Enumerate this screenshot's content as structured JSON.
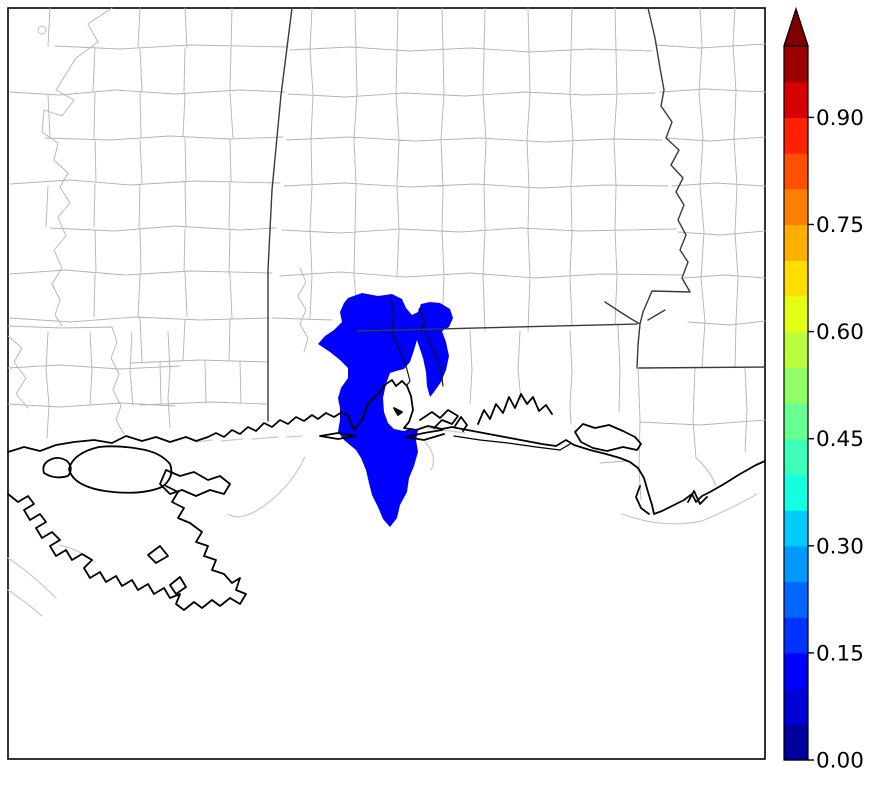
{
  "figure": {
    "background_color": "#ffffff"
  },
  "map": {
    "frame_color": "#000000",
    "land_color": "#ffffff",
    "county_line_color": "#b3b3b3",
    "state_line_color": "#3a3a3a",
    "coastline_color": "#000000",
    "water_feature_color": "#c9c9c9",
    "overlay_region": {
      "fill_color": "#0000FF",
      "border_color": "#111111",
      "colorbar_bin": [
        0.1,
        0.15
      ]
    }
  },
  "colorbar": {
    "orientation": "vertical",
    "extend": "max",
    "range": [
      0.0,
      1.0
    ],
    "bin_size": 0.05,
    "arrow_color": "#800000",
    "outline_color": "#000000",
    "label_color": "#000000",
    "ticks": [
      {
        "label": "0.90",
        "value": 0.9
      },
      {
        "label": "0.75",
        "value": 0.75
      },
      {
        "label": "0.60",
        "value": 0.6
      },
      {
        "label": "0.45",
        "value": 0.45
      },
      {
        "label": "0.30",
        "value": 0.3
      },
      {
        "label": "0.15",
        "value": 0.15
      },
      {
        "label": "0.00",
        "value": 0.0
      }
    ],
    "segments": [
      "#00009D",
      "#0000D6",
      "#0000FF",
      "#0033FF",
      "#0066FF",
      "#0099FF",
      "#00CCFF",
      "#14FFE2",
      "#3EFFB9",
      "#67FF90",
      "#90FF67",
      "#B9FF3E",
      "#E2FF15",
      "#FFDE00",
      "#FFAF00",
      "#FF8000",
      "#FF5000",
      "#FF2100",
      "#D60000",
      "#9D0000"
    ]
  }
}
